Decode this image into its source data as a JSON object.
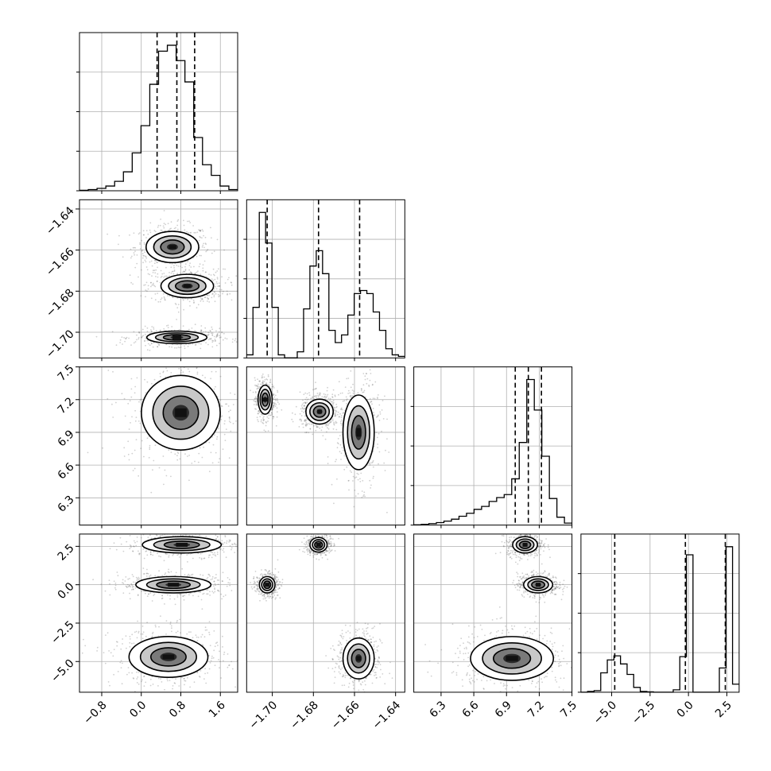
{
  "chart_data": {
    "type": "corner",
    "parameters": [
      "p0",
      "p1",
      "p2",
      "p3"
    ],
    "ranges": [
      [
        -1.25,
        1.95
      ],
      [
        -1.7125,
        -1.6355
      ],
      [
        6.05,
        7.5
      ],
      [
        -7.0,
        3.3
      ]
    ],
    "ticks": [
      {
        "values": [
          -0.8,
          0.0,
          0.8,
          1.6
        ],
        "labels": [
          "−0.8",
          "0.0",
          "0.8",
          "1.6"
        ]
      },
      {
        "values": [
          -1.7,
          -1.68,
          -1.66,
          -1.64
        ],
        "labels": [
          "−1.70",
          "−1.68",
          "−1.66",
          "−1.64"
        ]
      },
      {
        "values": [
          6.3,
          6.6,
          6.9,
          7.2,
          7.5
        ],
        "labels": [
          "6.3",
          "6.6",
          "6.9",
          "7.2",
          "7.5"
        ]
      },
      {
        "values": [
          -5.0,
          -2.5,
          0.0,
          2.5
        ],
        "labels": [
          "−5.0",
          "−2.5",
          "0.0",
          "2.5"
        ]
      }
    ],
    "histograms": [
      {
        "param": 0,
        "counts": [
          0.4,
          1,
          2,
          4,
          8,
          16,
          32,
          55,
          90,
          118,
          123,
          110,
          92,
          45,
          22,
          13,
          4,
          1
        ],
        "quantiles": [
          0.32,
          0.72,
          1.08
        ]
      },
      {
        "param": 1,
        "counts": [
          2,
          33,
          95,
          75,
          33,
          2,
          0,
          0,
          4,
          32,
          60,
          70,
          55,
          18,
          10,
          15,
          28,
          42,
          44,
          42,
          30,
          18,
          6,
          2,
          1
        ],
        "quantiles": [
          -1.7025,
          -1.6775,
          -1.6575
        ]
      },
      {
        "param": 2,
        "counts": [
          0.3,
          0.8,
          1.5,
          2.5,
          4,
          6,
          9,
          12,
          16,
          19,
          24,
          28,
          31,
          47,
          84,
          148,
          117,
          70,
          27,
          8,
          2
        ],
        "quantiles": [
          6.98,
          7.1,
          7.22
        ]
      },
      {
        "param": 3,
        "counts": [
          0,
          1,
          2,
          24,
          40,
          45,
          35,
          22,
          6,
          1,
          0.5,
          0,
          0,
          0,
          3,
          44,
          170,
          0,
          0,
          0,
          0,
          30,
          180,
          10
        ],
        "quantiles": [
          -4.8,
          -0.2,
          2.4
        ]
      }
    ],
    "scatter_panels": [
      {
        "x_param": 0,
        "y_param": 1,
        "modes": [
          {
            "mx": 0.63,
            "my": -1.6585,
            "sx": 0.28,
            "sy": 0.004
          },
          {
            "mx": 0.93,
            "my": -1.6775,
            "sx": 0.28,
            "sy": 0.003
          },
          {
            "mx": 0.72,
            "my": -1.7025,
            "sx": 0.32,
            "sy": 0.0016
          }
        ]
      },
      {
        "x_param": 0,
        "y_param": 2,
        "modes": [
          {
            "mx": 0.8,
            "my": 7.08,
            "sx": 0.42,
            "sy": 0.18
          }
        ]
      },
      {
        "x_param": 1,
        "y_param": 2,
        "modes": [
          {
            "mx": -1.7035,
            "my": 7.2,
            "sx": 0.0018,
            "sy": 0.07
          },
          {
            "mx": -1.677,
            "my": 7.09,
            "sx": 0.0035,
            "sy": 0.06
          },
          {
            "mx": -1.658,
            "my": 6.9,
            "sx": 0.004,
            "sy": 0.18
          }
        ]
      },
      {
        "x_param": 0,
        "y_param": 3,
        "modes": [
          {
            "mx": 0.82,
            "my": 2.6,
            "sx": 0.42,
            "sy": 0.28
          },
          {
            "mx": 0.65,
            "my": 0.0,
            "sx": 0.4,
            "sy": 0.28
          },
          {
            "mx": 0.55,
            "my": -4.7,
            "sx": 0.42,
            "sy": 0.7
          }
        ]
      },
      {
        "x_param": 1,
        "y_param": 3,
        "modes": [
          {
            "mx": -1.6775,
            "my": 2.6,
            "sx": 0.0022,
            "sy": 0.25
          },
          {
            "mx": -1.7025,
            "my": 0.0,
            "sx": 0.002,
            "sy": 0.28
          },
          {
            "mx": -1.658,
            "my": -4.8,
            "sx": 0.004,
            "sy": 0.7
          }
        ]
      },
      {
        "x_param": 2,
        "y_param": 3,
        "modes": [
          {
            "mx": 7.07,
            "my": 2.6,
            "sx": 0.06,
            "sy": 0.28
          },
          {
            "mx": 7.19,
            "my": 0.0,
            "sx": 0.07,
            "sy": 0.28
          },
          {
            "mx": 6.95,
            "my": -4.8,
            "sx": 0.2,
            "sy": 0.75
          }
        ]
      }
    ]
  }
}
